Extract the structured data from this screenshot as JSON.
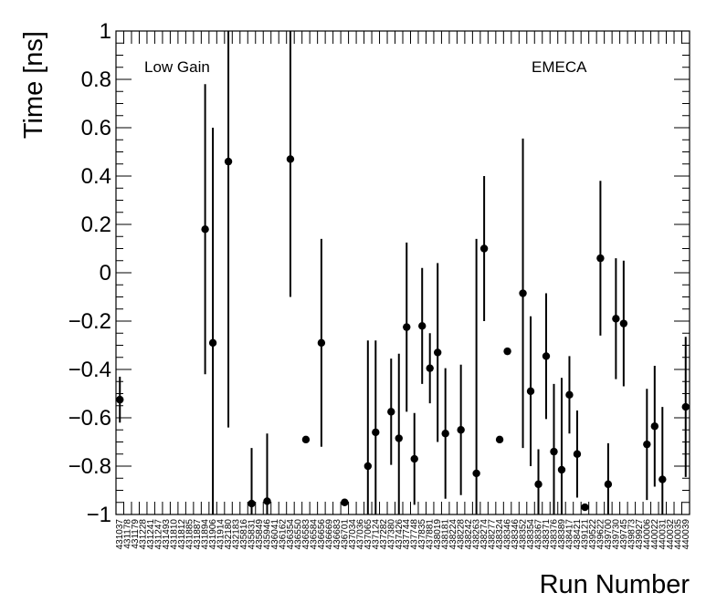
{
  "chart_data": {
    "type": "scatter",
    "title": "",
    "xlabel": "Run Number",
    "ylabel": "Time [ns]",
    "ylim": [
      -1,
      1
    ],
    "yticks": [
      1,
      0.8,
      0.6,
      0.4,
      0.2,
      0,
      -0.2,
      -0.4,
      -0.6,
      -0.8,
      -1
    ],
    "ytick_labels": [
      "1",
      "0.8",
      "0.6",
      "0.4",
      "0.2",
      "0",
      "−0.2",
      "−0.4",
      "−0.6",
      "−0.8",
      "−1"
    ],
    "annotations": {
      "left": "Low Gain",
      "right": "EMECA"
    },
    "grid": false,
    "categories": [
      "431037",
      "431178",
      "431179",
      "431228",
      "431241",
      "431247",
      "431493",
      "431810",
      "431812",
      "431885",
      "431887",
      "431894",
      "431906",
      "431914",
      "432180",
      "432183",
      "435816",
      "435831",
      "435849",
      "435946",
      "436041",
      "436162",
      "436354",
      "436550",
      "436583",
      "436584",
      "436656",
      "436669",
      "436683",
      "436701",
      "437034",
      "437036",
      "437065",
      "437124",
      "437282",
      "437380",
      "437426",
      "437744",
      "437748",
      "437835",
      "437881",
      "438019",
      "438181",
      "438224",
      "438228",
      "438242",
      "438263",
      "438274",
      "438277",
      "438324",
      "438346",
      "438346",
      "438352",
      "438354",
      "438367",
      "438371",
      "438376",
      "438389",
      "438417",
      "438421",
      "439121",
      "439522",
      "439622",
      "439700",
      "439730",
      "439745",
      "439873",
      "439927",
      "440006",
      "440022",
      "440031",
      "440032",
      "440035",
      "440039"
    ],
    "points": [
      {
        "x": "431037",
        "y": -0.525,
        "err": 0.095
      },
      {
        "x": "431894",
        "y": 0.18,
        "err": 0.6
      },
      {
        "x": "431906",
        "y": -0.29,
        "err": 0.89
      },
      {
        "x": "432180",
        "y": 0.46,
        "err": 1.1
      },
      {
        "x": "435831",
        "y": -0.955,
        "err": 0.23
      },
      {
        "x": "435946",
        "y": -0.945,
        "err": 0.28
      },
      {
        "x": "436354",
        "y": 0.47,
        "err": 0.57
      },
      {
        "x": "436583",
        "y": -0.69,
        "err": 0.0
      },
      {
        "x": "436656",
        "y": -0.29,
        "err": 0.43
      },
      {
        "x": "436701",
        "y": -0.95,
        "err": 0.0
      },
      {
        "x": "437065",
        "y": -0.8,
        "err": 0.52
      },
      {
        "x": "437124",
        "y": -0.66,
        "err": 0.38
      },
      {
        "x": "437380",
        "y": -0.575,
        "err": 0.22
      },
      {
        "x": "437426",
        "y": -0.685,
        "err": 0.35
      },
      {
        "x": "437744",
        "y": -0.225,
        "err": 0.35
      },
      {
        "x": "437748",
        "y": -0.77,
        "err": 0.19
      },
      {
        "x": "437835",
        "y": -0.22,
        "err": 0.24
      },
      {
        "x": "437881",
        "y": -0.395,
        "err": 0.145
      },
      {
        "x": "438019",
        "y": -0.33,
        "err": 0.37
      },
      {
        "x": "438181",
        "y": -0.665,
        "err": 0.27
      },
      {
        "x": "438228",
        "y": -0.65,
        "err": 0.27
      },
      {
        "x": "438263",
        "y": -0.83,
        "err": 0.97
      },
      {
        "x": "438274",
        "y": 0.1,
        "err": 0.3
      },
      {
        "x": "438324",
        "y": -0.69,
        "err": 0.0
      },
      {
        "x": "438346",
        "y": -0.325,
        "err": 0.0
      },
      {
        "x": "438352",
        "y": -0.085,
        "err": 0.64
      },
      {
        "x": "438354",
        "y": -0.49,
        "err": 0.31
      },
      {
        "x": "438367",
        "y": -0.875,
        "err": 0.145
      },
      {
        "x": "438371",
        "y": -0.345,
        "err": 0.26
      },
      {
        "x": "438376",
        "y": -0.74,
        "err": 0.28
      },
      {
        "x": "438389",
        "y": -0.815,
        "err": 0.38
      },
      {
        "x": "438417",
        "y": -0.505,
        "err": 0.16
      },
      {
        "x": "438421",
        "y": -0.75,
        "err": 0.18
      },
      {
        "x": "439121",
        "y": -0.97,
        "err": 0.0
      },
      {
        "x": "439622",
        "y": 0.06,
        "err": 0.32
      },
      {
        "x": "439700",
        "y": -0.875,
        "err": 0.17
      },
      {
        "x": "439730",
        "y": -0.19,
        "err": 0.25
      },
      {
        "x": "439745",
        "y": -0.21,
        "err": 0.26
      },
      {
        "x": "440006",
        "y": -0.71,
        "err": 0.23
      },
      {
        "x": "440022",
        "y": -0.635,
        "err": 0.25
      },
      {
        "x": "440031",
        "y": -0.855,
        "err": 0.3
      },
      {
        "x": "440039",
        "y": -0.555,
        "err": 0.29
      }
    ]
  }
}
